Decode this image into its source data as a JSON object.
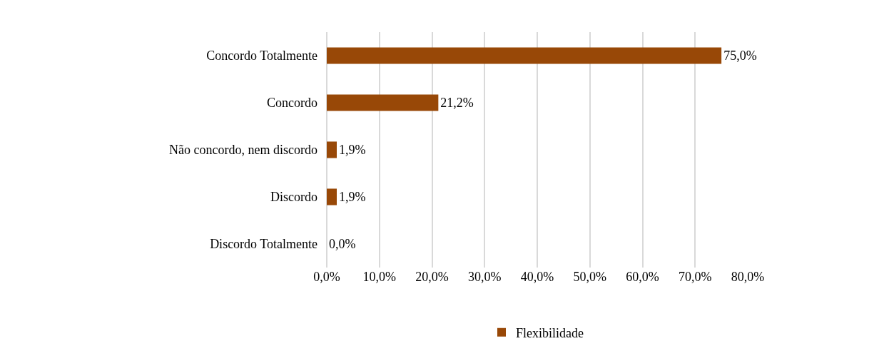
{
  "chart_data": {
    "type": "bar",
    "orientation": "horizontal",
    "categories": [
      "Concordo Totalmente",
      "Concordo",
      "Não concordo, nem discordo",
      "Discordo",
      "Discordo Totalmente"
    ],
    "series": [
      {
        "name": "Flexibilidade",
        "color": "#984807",
        "values": [
          75.0,
          21.2,
          1.9,
          1.9,
          0.0
        ],
        "value_labels": [
          "75,0%",
          "21,2%",
          "1,9%",
          "1,9%",
          "0,0%"
        ]
      }
    ],
    "xlim": [
      0,
      80
    ],
    "xticks": [
      {
        "value": 0,
        "label": "0,0%"
      },
      {
        "value": 10,
        "label": "10,0%"
      },
      {
        "value": 20,
        "label": "20,0%"
      },
      {
        "value": 30,
        "label": "30,0%"
      },
      {
        "value": 40,
        "label": "40,0%"
      },
      {
        "value": 50,
        "label": "50,0%"
      },
      {
        "value": 60,
        "label": "60,0%"
      },
      {
        "value": 70,
        "label": "70,0%"
      },
      {
        "value": 80,
        "label": "80,0%"
      }
    ],
    "grid": "x",
    "legend": "bottom"
  }
}
